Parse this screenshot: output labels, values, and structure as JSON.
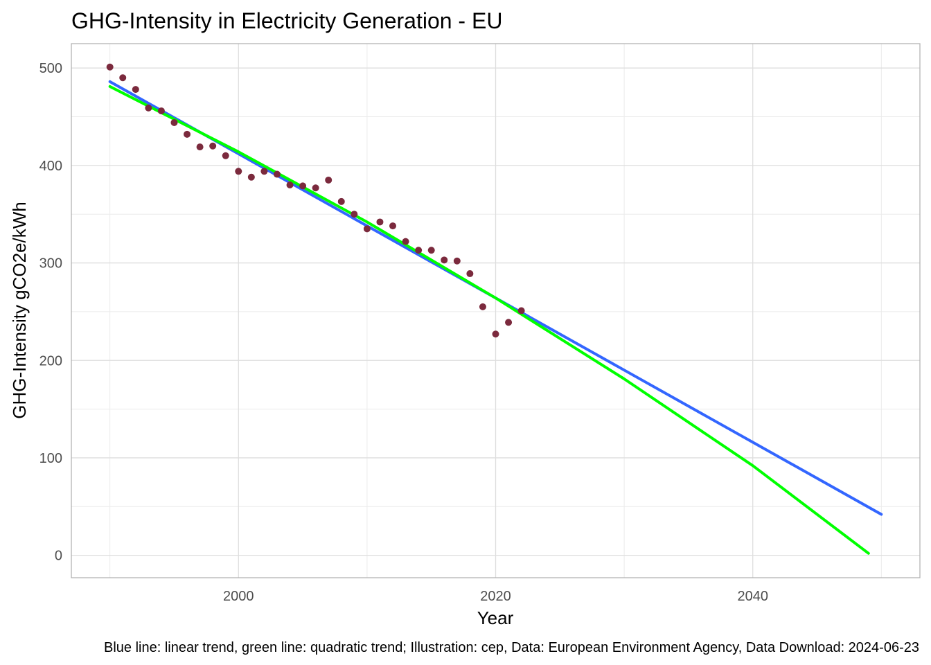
{
  "chart_data": {
    "type": "scatter",
    "title": "GHG-Intensity in Electricity Generation - EU",
    "xlabel": "Year",
    "ylabel": "GHG-Intensity gCO2e/kWh",
    "caption": "Blue line: linear trend, green line: quadratic trend; Illustration: cep, Data: European Environment Agency, Data Download: 2024-06-23",
    "xlim": [
      1987,
      2053
    ],
    "ylim": [
      -23,
      525
    ],
    "x_ticks": [
      2000,
      2020,
      2040
    ],
    "y_ticks": [
      0,
      100,
      200,
      300,
      400,
      500
    ],
    "grid": true,
    "series": [
      {
        "kind": "points",
        "color": "#7b2a3d",
        "x": [
          1990,
          1991,
          1992,
          1993,
          1994,
          1995,
          1996,
          1997,
          1998,
          1999,
          2000,
          2001,
          2002,
          2003,
          2004,
          2005,
          2006,
          2007,
          2008,
          2009,
          2010,
          2011,
          2012,
          2013,
          2014,
          2015,
          2016,
          2017,
          2018,
          2019,
          2020,
          2021,
          2022
        ],
        "y": [
          501,
          490,
          478,
          459,
          456,
          444,
          432,
          419,
          420,
          410,
          394,
          388,
          394,
          391,
          380,
          379,
          377,
          385,
          363,
          350,
          335,
          342,
          338,
          322,
          313,
          313,
          303,
          302,
          289,
          255,
          227,
          239,
          251
        ]
      },
      {
        "kind": "trend",
        "color": "#3366ff",
        "x": [
          1990,
          2050
        ],
        "y": [
          486,
          42
        ]
      },
      {
        "kind": "trend",
        "color": "#00ff00",
        "x": [
          1990,
          2000,
          2010,
          2020,
          2030,
          2040,
          2049
        ],
        "y": [
          481,
          414,
          342,
          264,
          181,
          92,
          2
        ]
      }
    ]
  }
}
